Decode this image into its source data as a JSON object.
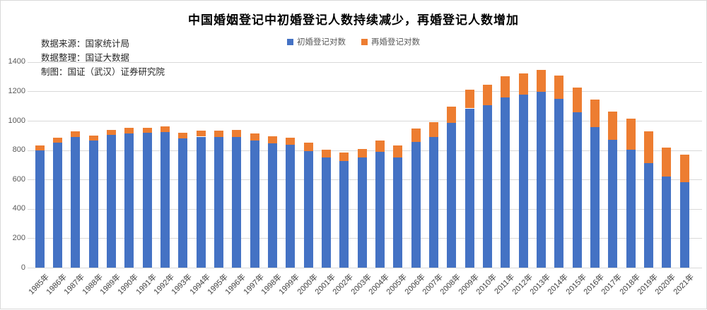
{
  "title": "中国婚姻登记中初婚登记人数持续减少，再婚登记人数增加",
  "source_block": {
    "line1": "数据来源：国家统计局",
    "line2": "数据整理：国证大数据",
    "line3": "制图：国证（武汉）证券研究院"
  },
  "colors": {
    "first_marriage": "#4472C4",
    "remarriage": "#ED7D31",
    "gridline": "#d9d9d9",
    "axis_text": "#595959",
    "xaxis_text": "#404040",
    "title_text": "#000000"
  },
  "chart_data": {
    "type": "bar",
    "stacked": true,
    "title": "中国婚姻登记中初婚登记人数持续减少，再婚登记人数增加",
    "xlabel": "",
    "ylabel": "",
    "ylim": [
      0,
      1400
    ],
    "yticks": [
      0,
      200,
      400,
      600,
      800,
      1000,
      1200,
      1400
    ],
    "grid": "horizontal",
    "legend_position": "top",
    "categories": [
      "1985年",
      "1986年",
      "1987年",
      "1988年",
      "1989年",
      "1990年",
      "1991年",
      "1992年",
      "1993年",
      "1994年",
      "1995年",
      "1996年",
      "1997年",
      "1998年",
      "1999年",
      "2000年",
      "2001年",
      "2002年",
      "2003年",
      "2004年",
      "2005年",
      "2006年",
      "2007年",
      "2008年",
      "2009年",
      "2010年",
      "2011年",
      "2012年",
      "2013年",
      "2014年",
      "2015年",
      "2016年",
      "2017年",
      "2018年",
      "2019年",
      "2020年",
      "2021年"
    ],
    "series": [
      {
        "name": "初婚登记对数",
        "color": "#4472C4",
        "values": [
          800,
          851,
          890,
          864,
          903,
          915,
          917,
          922,
          881,
          892,
          889,
          890,
          866,
          848,
          836,
          795,
          750,
          727,
          751,
          788,
          750,
          855,
          891,
          987,
          1084,
          1107,
          1160,
          1180,
          1198,
          1147,
          1056,
          956,
          871,
          805,
          710,
          621,
          582
        ]
      },
      {
        "name": "再婚登记对数",
        "color": "#ED7D31",
        "values": [
          33,
          36,
          38,
          36,
          36,
          37,
          35,
          39,
          36,
          40,
          46,
          50,
          49,
          45,
          49,
          54,
          55,
          59,
          57,
          79,
          80,
          90,
          99,
          111,
          128,
          138,
          142,
          144,
          148,
          160,
          169,
          187,
          191,
          210,
          218,
          197,
          186
        ]
      }
    ]
  }
}
